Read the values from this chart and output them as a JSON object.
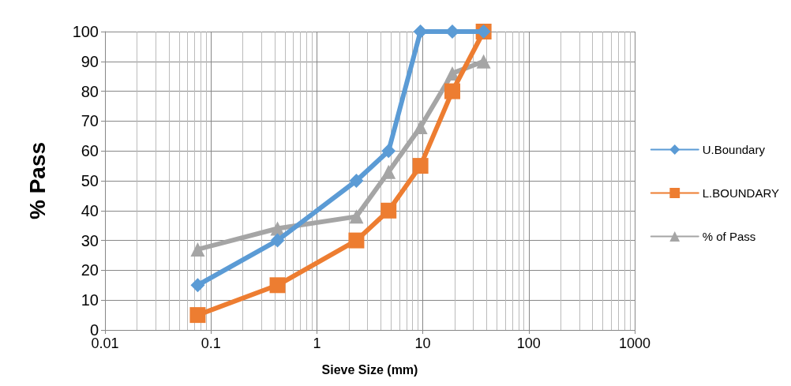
{
  "chart_data": {
    "type": "line",
    "xlabel": "Sieve Size (mm)",
    "ylabel": "% Pass",
    "log": "x",
    "x": [
      0.075,
      0.425,
      2.36,
      4.75,
      9.5,
      19,
      37.5
    ],
    "series": [
      {
        "name": "U.Boundary",
        "color": "#5b9bd5",
        "marker": "diamond",
        "values": [
          15,
          30,
          50,
          60,
          100,
          100,
          100
        ]
      },
      {
        "name": "L.BOUNDARY",
        "color": "#ed7d31",
        "marker": "square",
        "values": [
          5,
          15,
          30,
          40,
          55,
          80,
          100
        ]
      },
      {
        "name": "% of Pass",
        "color": "#a5a5a5",
        "marker": "triangle",
        "values": [
          27,
          34,
          38,
          53,
          68,
          86,
          90
        ]
      }
    ],
    "xlim": [
      0.01,
      1000
    ],
    "xticks": [
      0.01,
      0.1,
      1,
      10,
      100,
      1000
    ],
    "ylim": [
      0,
      100
    ],
    "yticks": [
      0,
      10,
      20,
      30,
      40,
      50,
      60,
      70,
      80,
      90,
      100
    ],
    "grid": true,
    "legend": "right"
  }
}
